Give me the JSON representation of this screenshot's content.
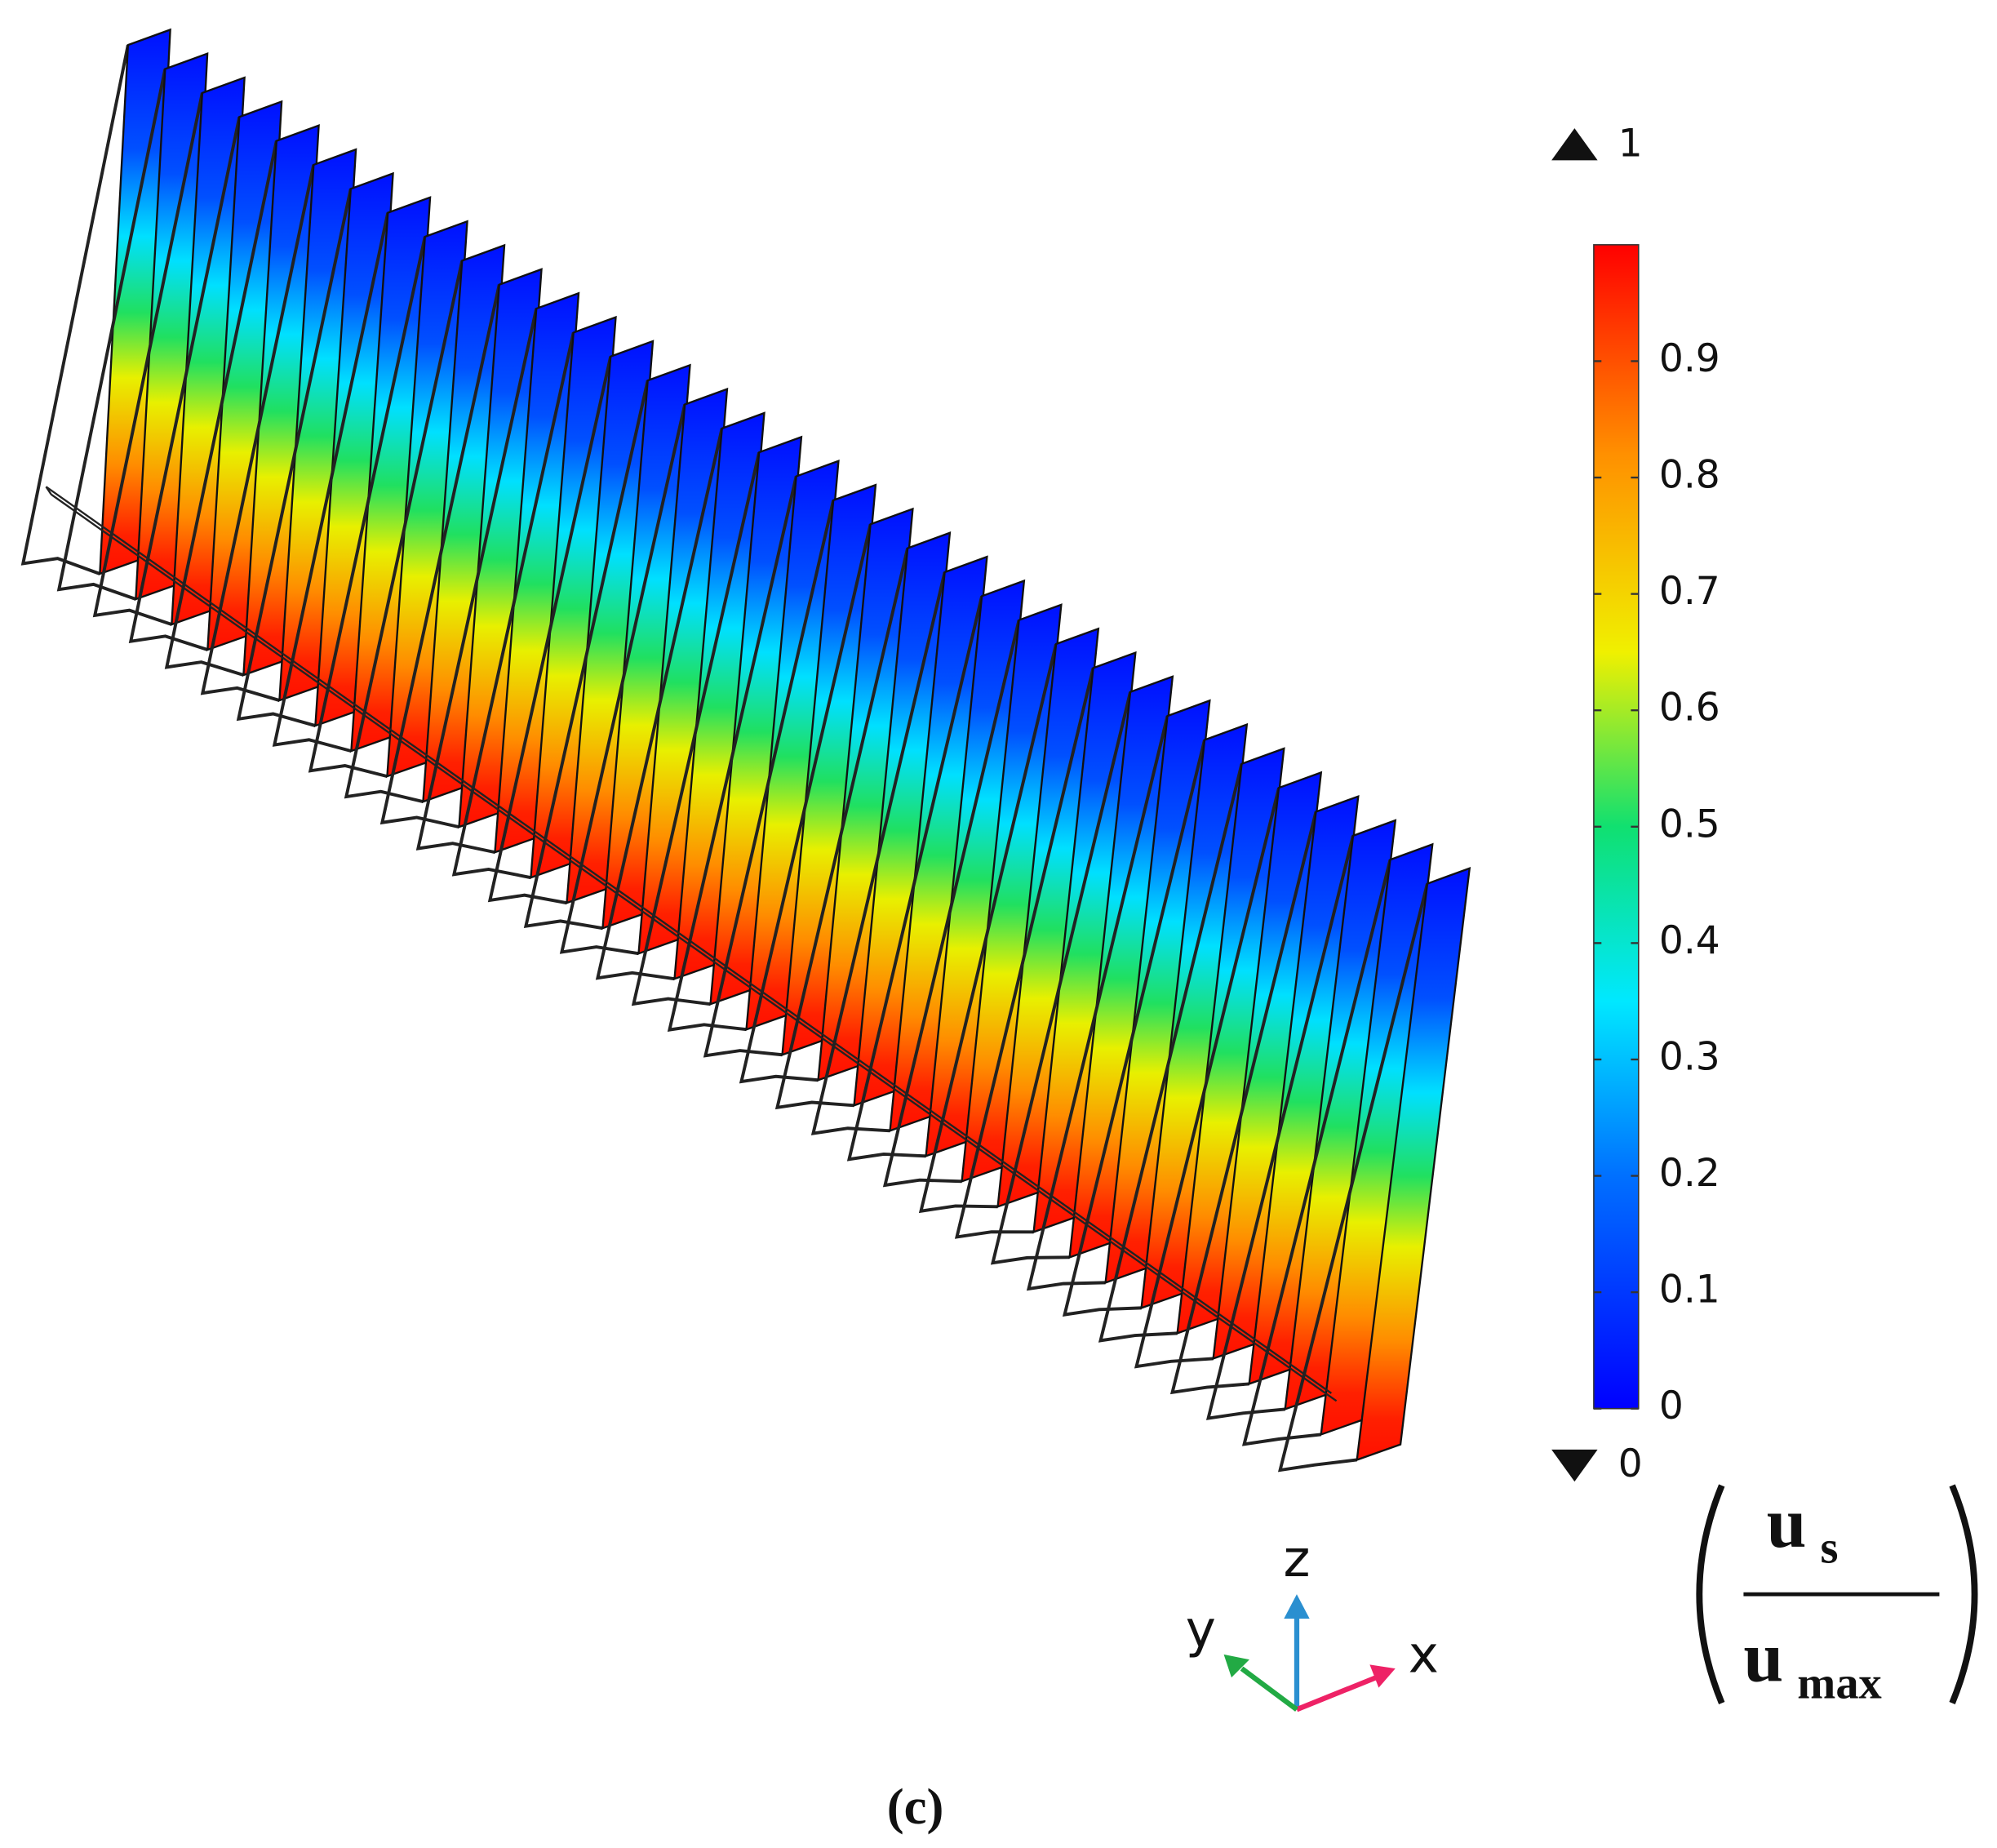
{
  "figure": {
    "colorbar": {
      "range": [
        0,
        1
      ],
      "ticks": [
        0,
        0.1,
        0.2,
        0.3,
        0.4,
        0.5,
        0.6,
        0.7,
        0.8,
        0.9
      ],
      "max": 1,
      "min": 0
    },
    "quantity": {
      "numerator": "u",
      "numerator_sub": "s",
      "denominator": "u",
      "denominator_sub": "max"
    },
    "axes": {
      "x": "x",
      "y": "y",
      "z": "z"
    },
    "caption": "(c)"
  }
}
